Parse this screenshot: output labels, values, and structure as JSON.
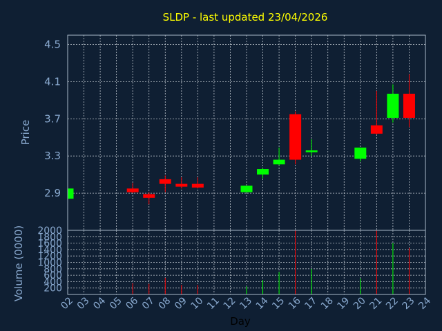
{
  "chart_data": {
    "type": "candlestick",
    "title": "SLDP - last updated 23/04/2026",
    "xlabel": "Day",
    "x_ticks": [
      "02",
      "03",
      "04",
      "05",
      "06",
      "07",
      "08",
      "09",
      "10",
      "11",
      "12",
      "13",
      "14",
      "15",
      "16",
      "17",
      "18",
      "19",
      "20",
      "21",
      "22",
      "23",
      "24"
    ],
    "colors": {
      "up": "#00ff00",
      "down": "#ff0000",
      "background": "#0f1f33",
      "title": "#ffff00",
      "axis_text": "#8aaad0"
    },
    "price_panel": {
      "ylabel": "Price",
      "ylim": [
        2.5,
        4.6
      ],
      "y_ticks": [
        2.9,
        3.3,
        3.7,
        4.1,
        4.5
      ],
      "grid": true
    },
    "volume_panel": {
      "ylabel": "Volume (0000)",
      "ylim": [
        0,
        2000
      ],
      "y_ticks": [
        200,
        400,
        600,
        800,
        1000,
        1200,
        1400,
        1600,
        1800,
        2000
      ],
      "grid": true
    },
    "candles": [
      {
        "day": 2,
        "open": 2.84,
        "high": 2.95,
        "low": 2.84,
        "close": 2.95,
        "volume": 0
      },
      {
        "day": 6,
        "open": 2.95,
        "high": 3.01,
        "low": 2.9,
        "close": 2.91,
        "volume": 350
      },
      {
        "day": 7,
        "open": 2.89,
        "high": 2.91,
        "low": 2.78,
        "close": 2.85,
        "volume": 330
      },
      {
        "day": 8,
        "open": 3.05,
        "high": 3.09,
        "low": 2.91,
        "close": 3.0,
        "volume": 520
      },
      {
        "day": 9,
        "open": 3.0,
        "high": 3.07,
        "low": 2.95,
        "close": 2.97,
        "volume": 300
      },
      {
        "day": 10,
        "open": 3.0,
        "high": 3.07,
        "low": 2.95,
        "close": 2.96,
        "volume": 300
      },
      {
        "day": 13,
        "open": 2.91,
        "high": 2.98,
        "low": 2.91,
        "close": 2.98,
        "volume": 250
      },
      {
        "day": 14,
        "open": 3.1,
        "high": 3.17,
        "low": 3.06,
        "close": 3.16,
        "volume": 450
      },
      {
        "day": 15,
        "open": 3.21,
        "high": 3.39,
        "low": 3.2,
        "close": 3.26,
        "volume": 700
      },
      {
        "day": 16,
        "open": 3.75,
        "high": 3.78,
        "low": 3.21,
        "close": 3.26,
        "volume": 2000
      },
      {
        "day": 17,
        "open": 3.34,
        "high": 3.48,
        "low": 3.3,
        "close": 3.36,
        "volume": 800
      },
      {
        "day": 20,
        "open": 3.27,
        "high": 3.39,
        "low": 3.24,
        "close": 3.39,
        "volume": 500
      },
      {
        "day": 21,
        "open": 3.63,
        "high": 4.0,
        "low": 3.53,
        "close": 3.54,
        "volume": 2000
      },
      {
        "day": 22,
        "open": 3.71,
        "high": 4.07,
        "low": 3.66,
        "close": 3.97,
        "volume": 1600
      },
      {
        "day": 23,
        "open": 3.97,
        "high": 4.18,
        "low": 3.61,
        "close": 3.71,
        "volume": 1450
      }
    ]
  }
}
